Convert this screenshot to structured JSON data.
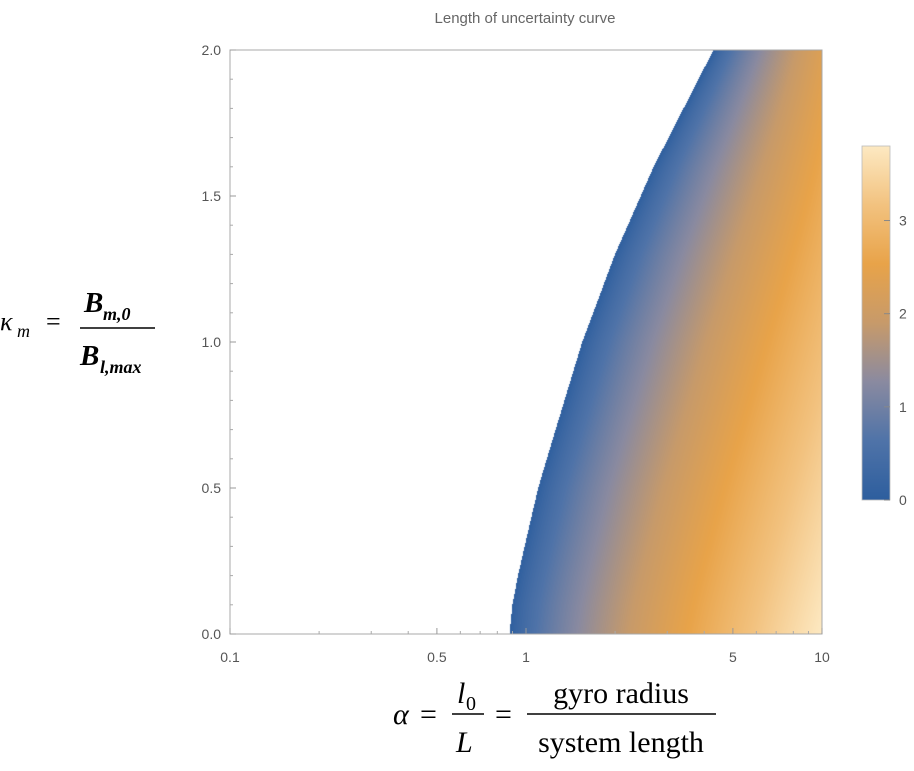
{
  "chart_data": {
    "type": "heatmap",
    "title": "Length of uncertainty curve",
    "x": {
      "scale": "log",
      "range": [
        0.1,
        10
      ],
      "ticks": [
        0.1,
        0.5,
        1,
        5,
        10
      ],
      "tick_labels": [
        "0.1",
        "0.5",
        "1",
        "5",
        "10"
      ],
      "label": {
        "lhs": "α",
        "frac1_num": "l",
        "frac1_num_sub": "0",
        "frac1_den": "L",
        "frac2_num": "gyro radius",
        "frac2_den": "system length",
        "equals": "="
      }
    },
    "y": {
      "scale": "linear",
      "range": [
        0,
        2
      ],
      "ticks": [
        0,
        0.5,
        1,
        1.5,
        2
      ],
      "tick_labels": [
        "0.0",
        "0.5",
        "1.0",
        "1.5",
        "2.0"
      ],
      "label": {
        "lhs": "κ",
        "lhs_sub": "m",
        "equals": "=",
        "num": "B",
        "num_sub": "m,0",
        "den": "B",
        "den_sub": "l,max"
      }
    },
    "colorbar": {
      "range": [
        0,
        3.8
      ],
      "ticks": [
        0,
        1,
        2,
        3
      ],
      "tick_labels": [
        "0",
        "1",
        "2",
        "3"
      ],
      "colors": [
        "#2d5e9e",
        "#4f73a8",
        "#8a8aa0",
        "#c79a6a",
        "#e8a349",
        "#f2c27f",
        "#fde9c2"
      ]
    },
    "boundary": [
      {
        "kappa": 0.0,
        "alpha": 0.88
      },
      {
        "kappa": 0.1,
        "alpha": 0.9
      },
      {
        "kappa": 0.2,
        "alpha": 0.94
      },
      {
        "kappa": 0.3,
        "alpha": 0.99
      },
      {
        "kappa": 0.5,
        "alpha": 1.1
      },
      {
        "kappa": 0.7,
        "alpha": 1.26
      },
      {
        "kappa": 1.0,
        "alpha": 1.55
      },
      {
        "kappa": 1.3,
        "alpha": 2.0
      },
      {
        "kappa": 1.6,
        "alpha": 2.7
      },
      {
        "kappa": 2.0,
        "alpha": 4.3
      }
    ],
    "values_note_samples": [
      {
        "alpha": 1.0,
        "kappa": 0.0,
        "value": 0.0
      },
      {
        "alpha": 1.5,
        "kappa": 0.0,
        "value": 1.0
      },
      {
        "alpha": 2.5,
        "kappa": 0.0,
        "value": 2.0
      },
      {
        "alpha": 5.0,
        "kappa": 0.0,
        "value": 3.0
      },
      {
        "alpha": 10.0,
        "kappa": 0.0,
        "value": 3.8
      },
      {
        "alpha": 10.0,
        "kappa": 2.0,
        "value": 2.2
      }
    ]
  }
}
